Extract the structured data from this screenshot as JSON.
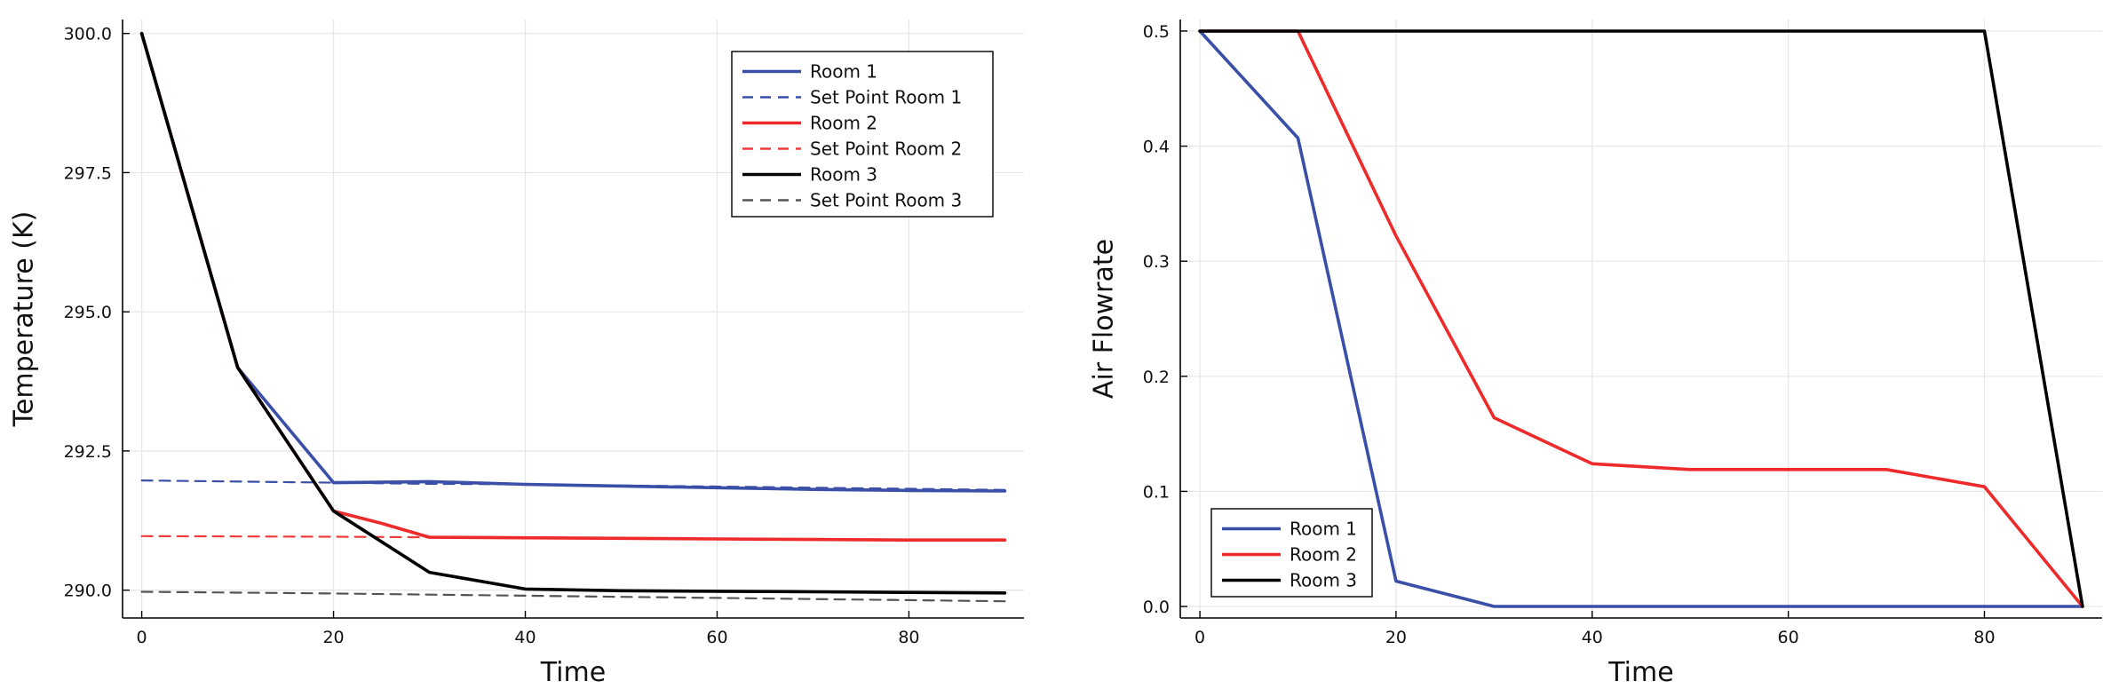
{
  "chart_data": [
    {
      "type": "line",
      "title": "",
      "xlabel": "Time",
      "ylabel": "Temperature (K)",
      "xlim": [
        -2,
        92
      ],
      "ylim": [
        289.5,
        300.25
      ],
      "xticks": [
        0,
        20,
        40,
        60,
        80
      ],
      "yticks": [
        290.0,
        292.5,
        295.0,
        297.5,
        300.0
      ],
      "ytick_labels": [
        "290.0",
        "292.5",
        "295.0",
        "297.5",
        "300.0"
      ],
      "grid": true,
      "legend": "top-right",
      "series": [
        {
          "name": "Set Point Room 1",
          "color": "#3a4fa8",
          "dash": "dashed",
          "x": [
            0,
            20,
            30,
            40,
            50,
            60,
            70,
            80,
            90
          ],
          "y": [
            291.97,
            291.93,
            291.91,
            291.9,
            291.88,
            291.86,
            291.84,
            291.82,
            291.8
          ]
        },
        {
          "name": "Set Point Room 2",
          "color": "#ef3b3b",
          "dash": "dashed",
          "x": [
            0,
            20,
            30,
            40,
            50,
            60,
            70,
            80,
            90
          ],
          "y": [
            290.97,
            290.96,
            290.95,
            290.94,
            290.93,
            290.92,
            290.91,
            290.9,
            290.89
          ]
        },
        {
          "name": "Set Point Room 3",
          "color": "#555555",
          "dash": "dashed",
          "x": [
            0,
            20,
            30,
            40,
            50,
            60,
            70,
            80,
            90
          ],
          "y": [
            289.97,
            289.94,
            289.92,
            289.9,
            289.88,
            289.86,
            289.84,
            289.82,
            289.8
          ]
        },
        {
          "name": "Room 1",
          "color": "#3a4fa8",
          "dash": "solid",
          "x": [
            0,
            10,
            20,
            30,
            40,
            50,
            60,
            70,
            80,
            90
          ],
          "y": [
            300.0,
            294.0,
            291.93,
            291.95,
            291.9,
            291.87,
            291.84,
            291.81,
            291.79,
            291.78
          ]
        },
        {
          "name": "Room 2",
          "color": "#ef2a2a",
          "dash": "solid",
          "x": [
            0,
            10,
            20,
            25,
            30,
            40,
            50,
            60,
            70,
            80,
            90
          ],
          "y": [
            300.0,
            294.0,
            291.42,
            291.2,
            290.95,
            290.94,
            290.93,
            290.92,
            290.91,
            290.9,
            290.9
          ]
        },
        {
          "name": "Room 3",
          "color": "#000000",
          "dash": "solid",
          "x": [
            0,
            10,
            20,
            30,
            40,
            50,
            60,
            70,
            80,
            90
          ],
          "y": [
            300.0,
            294.0,
            291.42,
            290.32,
            290.02,
            289.99,
            289.98,
            289.97,
            289.96,
            289.95
          ]
        }
      ],
      "legend_order": [
        "Room 1",
        "Set Point Room 1",
        "Room 2",
        "Set Point Room 2",
        "Room 3",
        "Set Point Room 3"
      ]
    },
    {
      "type": "line",
      "title": "",
      "xlabel": "Time",
      "ylabel": "Air Flowrate",
      "xlim": [
        -2,
        92
      ],
      "ylim": [
        -0.01,
        0.51
      ],
      "xticks": [
        0,
        20,
        40,
        60,
        80
      ],
      "yticks": [
        0.0,
        0.1,
        0.2,
        0.3,
        0.4,
        0.5
      ],
      "ytick_labels": [
        "0.0",
        "0.1",
        "0.2",
        "0.3",
        "0.4",
        "0.5"
      ],
      "grid": true,
      "legend": "bottom-left",
      "series": [
        {
          "name": "Room 1",
          "color": "#3a4fa8",
          "dash": "solid",
          "x": [
            0,
            10,
            20,
            30,
            40,
            50,
            60,
            70,
            80,
            90
          ],
          "y": [
            0.5,
            0.407,
            0.022,
            0.0,
            0.0,
            0.0,
            0.0,
            0.0,
            0.0,
            0.0
          ]
        },
        {
          "name": "Room 2",
          "color": "#ef2a2a",
          "dash": "solid",
          "x": [
            0,
            10,
            20,
            30,
            40,
            50,
            60,
            70,
            80,
            90
          ],
          "y": [
            0.5,
            0.5,
            0.322,
            0.164,
            0.124,
            0.119,
            0.119,
            0.119,
            0.104,
            0.0
          ]
        },
        {
          "name": "Room 3",
          "color": "#000000",
          "dash": "solid",
          "x": [
            0,
            10,
            20,
            30,
            40,
            50,
            60,
            70,
            80,
            90
          ],
          "y": [
            0.5,
            0.5,
            0.5,
            0.5,
            0.5,
            0.5,
            0.5,
            0.5,
            0.5,
            0.0
          ]
        }
      ],
      "legend_order": [
        "Room 1",
        "Room 2",
        "Room 3"
      ]
    }
  ]
}
